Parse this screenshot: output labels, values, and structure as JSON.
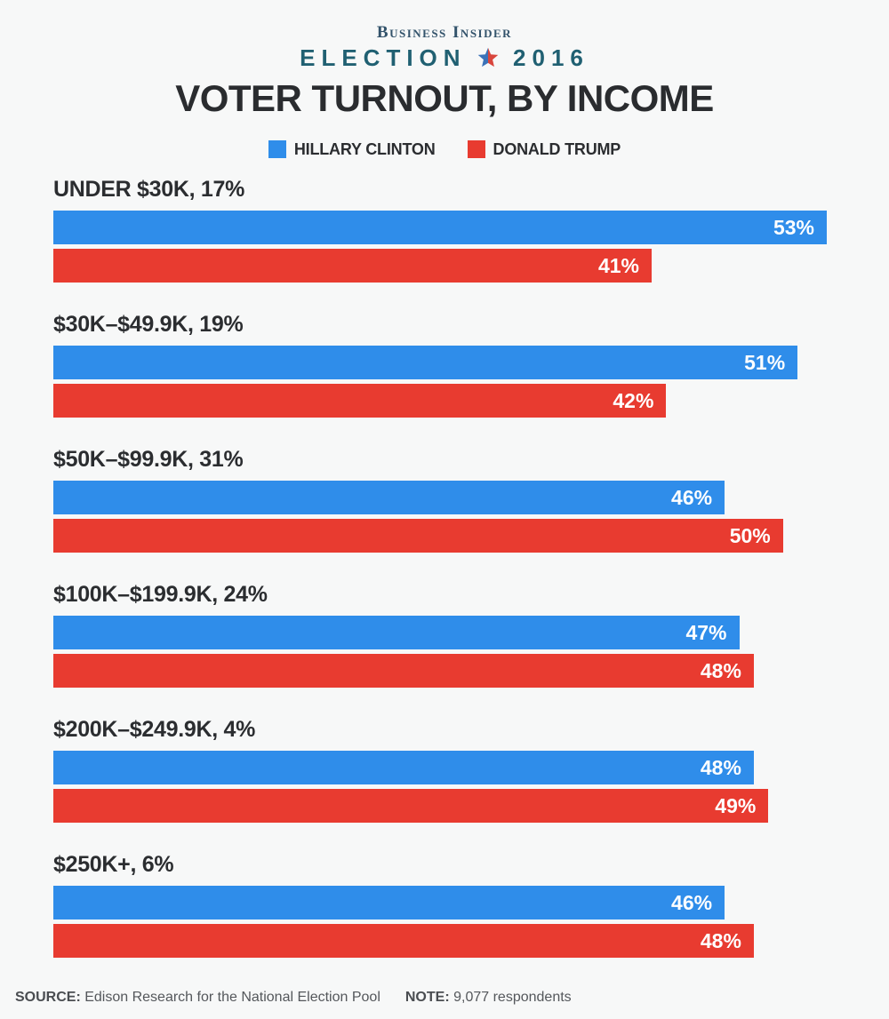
{
  "header": {
    "brand": "Business Insider",
    "election_word": "ELECTION",
    "election_year": "2016",
    "star_icon": "split-star-icon"
  },
  "title": "VOTER TURNOUT, BY INCOME",
  "legend": {
    "clinton_label": "HILLARY CLINTON",
    "trump_label": "DONALD TRUMP"
  },
  "chart_data": {
    "type": "bar",
    "orientation": "horizontal",
    "title": "VOTER TURNOUT, BY INCOME",
    "value_unit": "%",
    "scale_max_value": 53,
    "grid": false,
    "legend_position": "top-center",
    "series_names": [
      "Hillary Clinton",
      "Donald Trump"
    ],
    "categories": [
      "UNDER $30K, 17%",
      "$30K–$49.9K, 19%",
      "$50K–$99.9K, 31%",
      "$100K–$199.9K, 24%",
      "$200K–$249.9K, 4%",
      "$250K+, 6%"
    ],
    "groups": [
      {
        "label": "UNDER $30K, 17%",
        "clinton": 53,
        "trump": 41
      },
      {
        "label": "$30K–$49.9K, 19%",
        "clinton": 51,
        "trump": 42
      },
      {
        "label": "$50K–$99.9K, 31%",
        "clinton": 46,
        "trump": 50
      },
      {
        "label": "$100K–$199.9K, 24%",
        "clinton": 47,
        "trump": 48
      },
      {
        "label": "$200K–$249.9K, 4%",
        "clinton": 48,
        "trump": 49
      },
      {
        "label": "$250K+, 6%",
        "clinton": 46,
        "trump": 48
      }
    ]
  },
  "colors": {
    "clinton": "#2F8DEA",
    "trump": "#E83B30",
    "background": "#f7f8f8",
    "brand_text": "#33536B",
    "election_text": "#206072",
    "star_blue": "#3B72B8",
    "star_red": "#D9463D"
  },
  "footer": {
    "source_label": "SOURCE:",
    "source_text": "Edison Research for the National Election Pool",
    "note_label": "NOTE:",
    "note_text": "9,077 respondents"
  }
}
